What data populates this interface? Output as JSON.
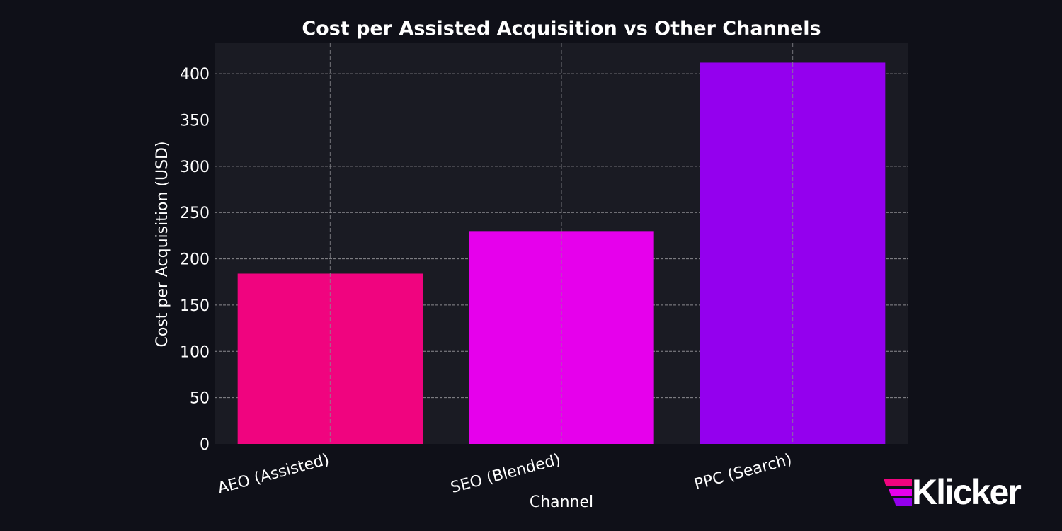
{
  "chart_data": {
    "type": "bar",
    "title": "Cost per Assisted Acquisition vs Other Channels",
    "xlabel": "Channel",
    "ylabel": "Cost per Acquisition (USD)",
    "categories": [
      "AEO (Assisted)",
      "SEO (Blended)",
      "PPC (Search)"
    ],
    "values": [
      184,
      230,
      412
    ],
    "colors": [
      "#f0047f",
      "#e600ec",
      "#9400ee"
    ],
    "ylim": [
      0,
      433
    ],
    "yticks": [
      0,
      50,
      100,
      150,
      200,
      250,
      300,
      350,
      400
    ],
    "grid": true
  },
  "brand": {
    "name": "Klicker",
    "stripe_colors": [
      "#f0047f",
      "#e600ec",
      "#9400ee"
    ]
  },
  "theme": {
    "background": "#0f1018",
    "plot_background": "#1a1b23",
    "text": "#ffffff",
    "grid": "#8a8a8f"
  }
}
